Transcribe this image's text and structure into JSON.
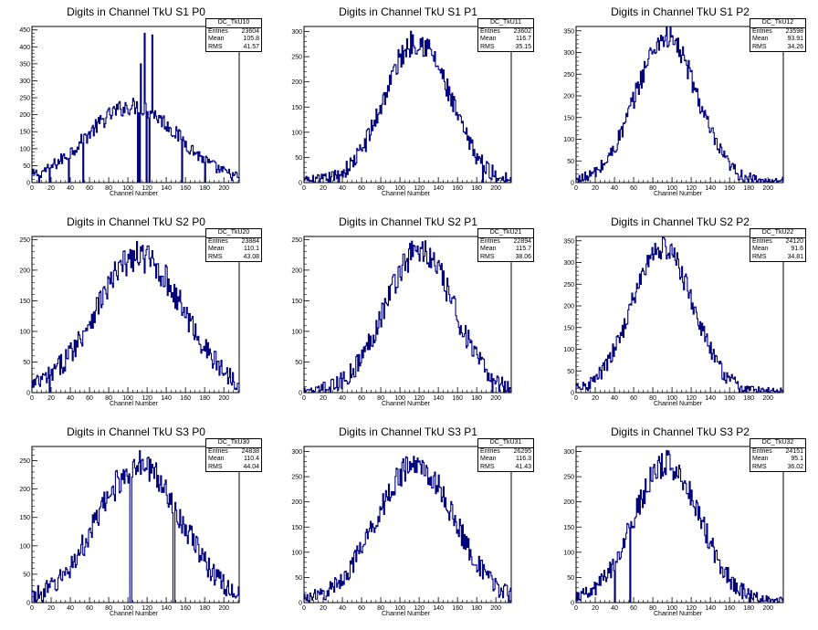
{
  "chart_data": [
    {
      "type": "histogram",
      "title": "Digits in Channel TkU S1 P0",
      "xlabel": "Channel Number",
      "xlim": [
        0,
        216
      ],
      "ylim": [
        0,
        460
      ],
      "yticks": [
        0,
        50,
        100,
        150,
        200,
        250,
        300,
        350,
        400,
        450
      ],
      "xticks": [
        0,
        20,
        40,
        60,
        80,
        100,
        120,
        140,
        160,
        180,
        200
      ],
      "stats": {
        "name": "DC_TkU10",
        "entries": "23604",
        "mean": "105.8",
        "rms": "41.57"
      },
      "profile": {
        "mu": 105,
        "sigma": 48,
        "peak": 225,
        "noise": 12
      },
      "spikes": [
        {
          "x": 113,
          "y": 350
        },
        {
          "x": 117,
          "y": 440
        },
        {
          "x": 125,
          "y": 435
        }
      ],
      "dead": [
        7,
        18,
        38,
        53,
        110,
        112,
        119,
        122,
        156,
        180
      ]
    },
    {
      "type": "histogram",
      "title": "Digits in Channel TkU S1 P1",
      "xlabel": "Channel Number",
      "xlim": [
        0,
        216
      ],
      "ylim": [
        0,
        310
      ],
      "yticks": [
        0,
        50,
        100,
        150,
        200,
        250,
        300
      ],
      "xticks": [
        0,
        20,
        40,
        60,
        80,
        100,
        120,
        140,
        160,
        180,
        200
      ],
      "stats": {
        "name": "DC_TkU11",
        "entries": "23602",
        "mean": "116.7",
        "rms": "35.15"
      },
      "profile": {
        "mu": 118,
        "sigma": 34,
        "peak": 282,
        "noise": 12
      },
      "spikes": [],
      "dead": [
        186,
        200
      ]
    },
    {
      "type": "histogram",
      "title": "Digits in Channel TkU S1 P2",
      "xlabel": "Channel Number",
      "xlim": [
        0,
        216
      ],
      "ylim": [
        0,
        360
      ],
      "yticks": [
        0,
        50,
        100,
        150,
        200,
        250,
        300,
        350
      ],
      "xticks": [
        0,
        20,
        40,
        60,
        80,
        100,
        120,
        140,
        160,
        180,
        200
      ],
      "stats": {
        "name": "DC_TkU12",
        "entries": "23598",
        "mean": "93.91",
        "rms": "34.26"
      },
      "profile": {
        "mu": 94,
        "sigma": 32,
        "peak": 335,
        "noise": 12
      },
      "spikes": [],
      "dead": []
    },
    {
      "type": "histogram",
      "title": "Digits in Channel TkU S2 P0",
      "xlabel": "Channel Number",
      "xlim": [
        0,
        216
      ],
      "ylim": [
        0,
        255
      ],
      "yticks": [
        0,
        50,
        100,
        150,
        200,
        250
      ],
      "xticks": [
        0,
        20,
        40,
        60,
        80,
        100,
        120,
        140,
        160,
        180,
        200
      ],
      "stats": {
        "name": "DC_TkU20",
        "entries": "23884",
        "mean": "110.1",
        "rms": "43.08"
      },
      "profile": {
        "mu": 112,
        "sigma": 46,
        "peak": 222,
        "noise": 12
      },
      "spikes": [],
      "dead": [
        18
      ]
    },
    {
      "type": "histogram",
      "title": "Digits in Channel TkU S2 P1",
      "xlabel": "Channel Number",
      "xlim": [
        0,
        216
      ],
      "ylim": [
        0,
        255
      ],
      "yticks": [
        0,
        50,
        100,
        150,
        200,
        250
      ],
      "xticks": [
        0,
        20,
        40,
        60,
        80,
        100,
        120,
        140,
        160,
        180,
        200
      ],
      "stats": {
        "name": "DC_TkU21",
        "entries": "22894",
        "mean": "115.7",
        "rms": "38.06"
      },
      "profile": {
        "mu": 120,
        "sigma": 36,
        "peak": 232,
        "noise": 11
      },
      "spikes": [],
      "dead": [
        10,
        16,
        196
      ]
    },
    {
      "type": "histogram",
      "title": "Digits in Channel TkU S2 P2",
      "xlabel": "Channel Number",
      "xlim": [
        0,
        216
      ],
      "ylim": [
        0,
        360
      ],
      "yticks": [
        0,
        50,
        100,
        150,
        200,
        250,
        300,
        350
      ],
      "xticks": [
        0,
        20,
        40,
        60,
        80,
        100,
        120,
        140,
        160,
        180,
        200
      ],
      "stats": {
        "name": "DC_TkU22",
        "entries": "24120",
        "mean": "91.6",
        "rms": "34.81"
      },
      "profile": {
        "mu": 90,
        "sigma": 32,
        "peak": 335,
        "noise": 12
      },
      "spikes": [],
      "dead": []
    },
    {
      "type": "histogram",
      "title": "Digits in Channel TkU S3 P0",
      "xlabel": "Channel Number",
      "xlim": [
        0,
        216
      ],
      "ylim": [
        0,
        275
      ],
      "yticks": [
        0,
        50,
        100,
        150,
        200,
        250
      ],
      "xticks": [
        0,
        20,
        40,
        60,
        80,
        100,
        120,
        140,
        160,
        180,
        200
      ],
      "stats": {
        "name": "DC_TkU30",
        "entries": "24838",
        "mean": "110.4",
        "rms": "44.04"
      },
      "profile": {
        "mu": 112,
        "sigma": 44,
        "peak": 242,
        "noise": 13
      },
      "spikes": [],
      "dead": [
        4,
        102,
        103,
        147,
        148
      ]
    },
    {
      "type": "histogram",
      "title": "Digits in Channel TkU S3 P1",
      "xlabel": "Channel Number",
      "xlim": [
        0,
        216
      ],
      "ylim": [
        0,
        310
      ],
      "yticks": [
        0,
        50,
        100,
        150,
        200,
        250,
        300
      ],
      "xticks": [
        0,
        20,
        40,
        60,
        80,
        100,
        120,
        140,
        160,
        180,
        200
      ],
      "stats": {
        "name": "DC_TkU31",
        "entries": "26295",
        "mean": "116.3",
        "rms": "41.43"
      },
      "profile": {
        "mu": 116,
        "sigma": 41,
        "peak": 272,
        "noise": 13
      },
      "spikes": [],
      "dead": []
    },
    {
      "type": "histogram",
      "title": "Digits in Channel TkU S3 P2",
      "xlabel": "Channel Number",
      "xlim": [
        0,
        216
      ],
      "ylim": [
        0,
        310
      ],
      "yticks": [
        0,
        50,
        100,
        150,
        200,
        250,
        300
      ],
      "xticks": [
        0,
        20,
        40,
        60,
        80,
        100,
        120,
        140,
        160,
        180,
        200
      ],
      "stats": {
        "name": "DC_TkU32",
        "entries": "24151",
        "mean": "95.1",
        "rms": "36.02"
      },
      "profile": {
        "mu": 95,
        "sigma": 35,
        "peak": 275,
        "noise": 13
      },
      "spikes": [],
      "dead": [
        40,
        56
      ]
    }
  ],
  "stats_labels": {
    "entries": "Entries",
    "mean": "Mean",
    "rms": "RMS"
  },
  "colors": {
    "line": "#00007f",
    "axis": "#000000",
    "background": "#ffffff"
  }
}
